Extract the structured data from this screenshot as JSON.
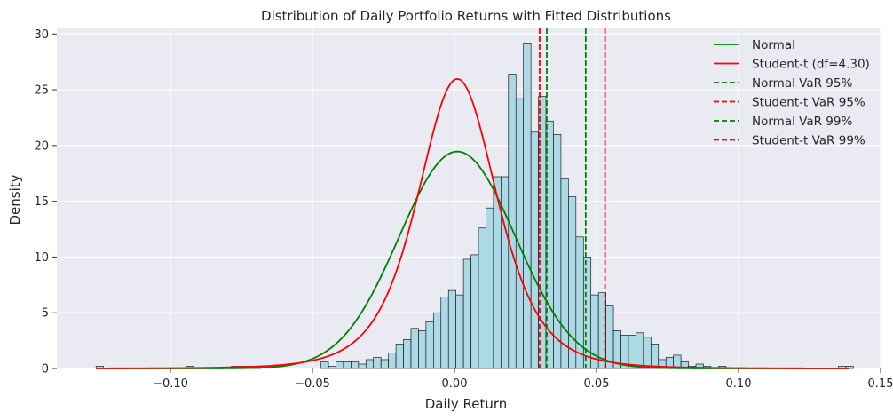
{
  "chart_data": {
    "type": "histogram",
    "title": "Distribution of Daily Portfolio Returns with Fitted Distributions",
    "xlabel": "Daily Return",
    "ylabel": "Density",
    "xlim": [
      -0.14,
      0.15
    ],
    "ylim": [
      0,
      30.5
    ],
    "xticks": [
      -0.1,
      -0.05,
      0.0,
      0.05,
      0.1,
      0.15
    ],
    "xtick_labels": [
      "−0.10",
      "−0.05",
      "0.00",
      "0.05",
      "0.10",
      "0.15"
    ],
    "yticks": [
      0,
      5,
      10,
      15,
      20,
      25,
      30
    ],
    "ytick_labels": [
      "0",
      "5",
      "10",
      "15",
      "20",
      "25",
      "30"
    ],
    "grid": true,
    "legend_position": "top-right",
    "histogram": {
      "bin_start": -0.1262,
      "bin_width": 0.00264,
      "color": "#add8e6",
      "edge_color": "#000000",
      "densities": [
        0.2,
        0,
        0,
        0,
        0,
        0,
        0,
        0,
        0,
        0,
        0,
        0,
        0.2,
        0,
        0,
        0,
        0,
        0,
        0.2,
        0.2,
        0.2,
        0.2,
        0,
        0,
        0,
        0,
        0,
        0,
        0,
        0,
        0.6,
        0.2,
        0.6,
        0.6,
        0.6,
        0.4,
        0.8,
        1.0,
        0.8,
        1.4,
        2.2,
        2.6,
        3.6,
        3.4,
        4.2,
        5.0,
        6.4,
        7.0,
        6.6,
        9.8,
        10.2,
        12.6,
        14.4,
        17.2,
        17.2,
        26.4,
        24.2,
        29.2,
        21.2,
        24.4,
        22.2,
        21.0,
        17.0,
        15.4,
        11.8,
        10.0,
        6.6,
        6.8,
        5.6,
        3.4,
        3.0,
        3.0,
        3.2,
        2.8,
        2.2,
        0.8,
        1.0,
        1.2,
        0.6,
        0.2,
        0.4,
        0.2,
        0,
        0.2,
        0,
        0,
        0,
        0,
        0,
        0,
        0,
        0,
        0,
        0,
        0,
        0,
        0,
        0,
        0,
        0.2,
        0.2,
        0,
        0,
        0,
        0,
        0,
        0,
        0,
        0,
        0,
        0,
        0,
        0,
        0,
        0,
        0,
        0,
        0,
        0,
        0.2
      ]
    },
    "series": [
      {
        "name": "Normal",
        "kind": "normal-pdf",
        "mean": 0.001,
        "std": 0.0205,
        "color": "#008000",
        "style": "solid"
      },
      {
        "name": "Student-t (df=4.30)",
        "kind": "t-pdf",
        "df": 4.3,
        "loc": 0.001,
        "scale": 0.0145,
        "color": "#ff0000",
        "style": "solid"
      },
      {
        "name": "Normal VaR 95%",
        "kind": "vline",
        "x": 0.0325,
        "color": "#008000",
        "style": "dashed"
      },
      {
        "name": "Student-t VaR 95%",
        "kind": "vline",
        "x": 0.03,
        "color": "#ff0000",
        "style": "dashed"
      },
      {
        "name": "Normal VaR 99%",
        "kind": "vline",
        "x": 0.0462,
        "color": "#008000",
        "style": "dashed"
      },
      {
        "name": "Student-t VaR 99%",
        "kind": "vline",
        "x": 0.053,
        "color": "#ff0000",
        "style": "dashed"
      }
    ],
    "colors": {
      "background": "#eaeaf2",
      "grid": "#ffffff"
    }
  }
}
